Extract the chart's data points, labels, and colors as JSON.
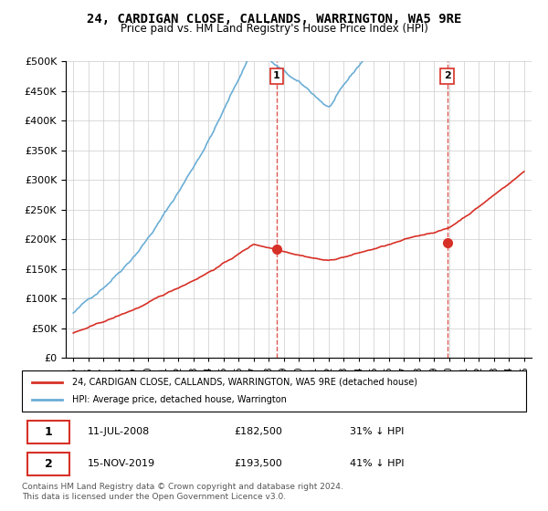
{
  "title": "24, CARDIGAN CLOSE, CALLANDS, WARRINGTON, WA5 9RE",
  "subtitle": "Price paid vs. HM Land Registry's House Price Index (HPI)",
  "hpi_color": "#6baed6",
  "price_color": "#d73027",
  "vline_color": "#d73027",
  "grid_color": "#cccccc",
  "sale1_date_num": 2008.53,
  "sale1_price": 182500,
  "sale1_label": "1",
  "sale2_date_num": 2019.88,
  "sale2_price": 193500,
  "sale2_label": "2",
  "legend_entry1": "24, CARDIGAN CLOSE, CALLANDS, WARRINGTON, WA5 9RE (detached house)",
  "legend_entry2": "HPI: Average price, detached house, Warrington",
  "table_row1": [
    "1",
    "11-JUL-2008",
    "£182,500",
    "31% ↓ HPI"
  ],
  "table_row2": [
    "2",
    "15-NOV-2019",
    "£193,500",
    "41% ↓ HPI"
  ],
  "footnote": "Contains HM Land Registry data © Crown copyright and database right 2024.\nThis data is licensed under the Open Government Licence v3.0.",
  "ylim_max": 500000,
  "xlim_min": 1995,
  "xlim_max": 2025.5
}
